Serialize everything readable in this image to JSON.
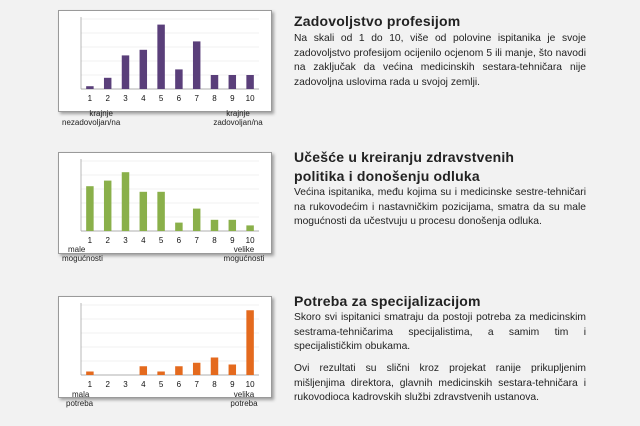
{
  "sections": [
    {
      "heading": "Zadovoljstvo profesijom",
      "paragraphs": [
        "Na skali od 1 do 10, više od polovine ispitanika je svoje zadovoljstvo profesijom ocijenilo ocjenom 5 ili manje, što navodi na zaključak da većina medicinskih sestara-tehničara nije zadovoljna uslovima rada u svojoj zemlji."
      ]
    },
    {
      "heading": "Učešće u kreiranju zdravstvenih politika i donošenju odluka",
      "paragraphs": [
        "Većina ispitanika, među kojima su i medicinske sestre-tehničari na rukovodećim i nastavničkim pozicijama, smatra da su male mogućnosti da učestvuju u procesu donošenja odluka."
      ]
    },
    {
      "heading": "Potreba za specijalizacijom",
      "paragraphs": [
        "Skoro svi ispitanici smatraju da postoji potreba za medicinskim sestrama-tehničarima specijalistima, a samim tim i specijalističkim obukama.",
        "Ovi rezultati su slični kroz projekat ranije prikupljenim mišljenjima direktora, glavnih medicinskih sestara-tehničara i rukovodioca kadrovskih službi zdravstvenih ustanova."
      ]
    }
  ],
  "chart_data": [
    {
      "type": "bar",
      "color": "#5a3f7a",
      "categories": [
        "1",
        "2",
        "3",
        "4",
        "5",
        "6",
        "7",
        "8",
        "9",
        "10"
      ],
      "values": [
        1,
        4,
        12,
        14,
        23,
        7,
        17,
        5,
        5,
        5
      ],
      "ylim": [
        0,
        25
      ],
      "left_label": [
        "krajnje",
        "nezadovoljan/na"
      ],
      "right_label": [
        "krajnje",
        "zadovoljan/na"
      ]
    },
    {
      "type": "bar",
      "color": "#8ab04a",
      "categories": [
        "1",
        "2",
        "3",
        "4",
        "5",
        "6",
        "7",
        "8",
        "9",
        "10"
      ],
      "values": [
        16,
        18,
        21,
        14,
        14,
        3,
        8,
        4,
        4,
        2
      ],
      "ylim": [
        0,
        25
      ],
      "left_label": [
        "male",
        "mogućnosti"
      ],
      "right_label": [
        "velike",
        "mogućnosti"
      ]
    },
    {
      "type": "bar",
      "color": "#e46a1e",
      "categories": [
        "1",
        "2",
        "3",
        "4",
        "5",
        "6",
        "7",
        "8",
        "9",
        "10"
      ],
      "values": [
        2,
        0,
        0,
        5,
        2,
        5,
        7,
        10,
        6,
        37
      ],
      "ylim": [
        0,
        40
      ],
      "left_label": [
        "mala",
        "potreba"
      ],
      "right_label": [
        "velika",
        "potreba"
      ]
    }
  ]
}
